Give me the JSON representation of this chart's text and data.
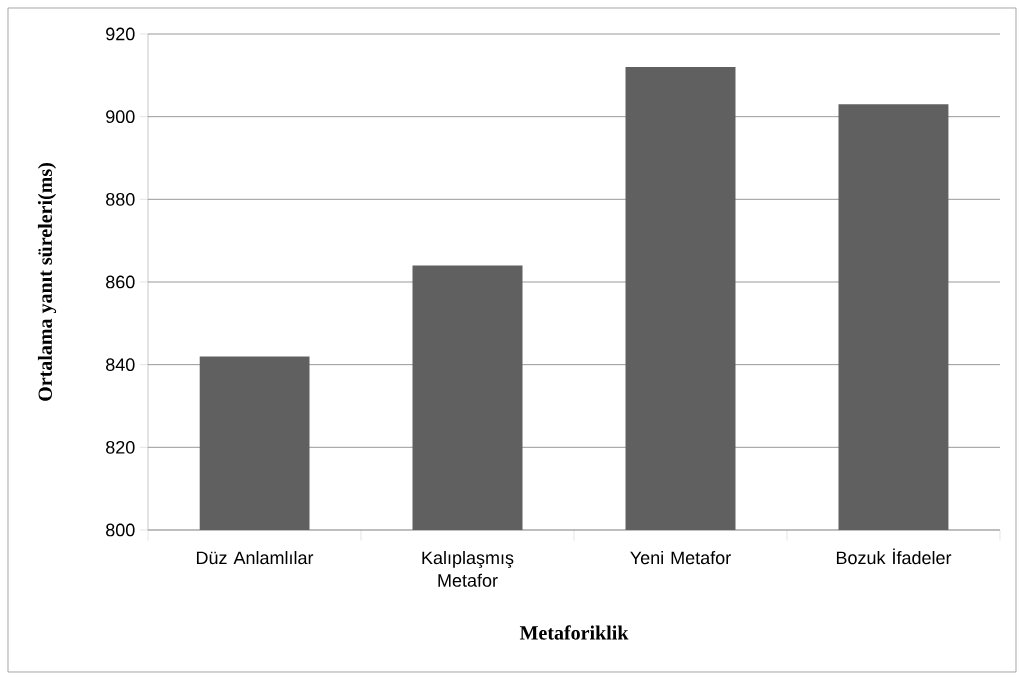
{
  "chart_data": {
    "type": "bar",
    "xlabel": "Metaforiklik",
    "ylabel": "Ortalama yanıt süreleri(ms)",
    "categories": [
      "Düz Anlamlılar",
      "Kalıplaşmış Metafor",
      "Yeni Metafor",
      "Bozuk İfadeler"
    ],
    "values": [
      842,
      864,
      912,
      903
    ],
    "color": "#606060",
    "ylim": [
      800,
      920
    ],
    "yticks": [
      800,
      820,
      840,
      860,
      880,
      900,
      920
    ],
    "grid": "y"
  }
}
